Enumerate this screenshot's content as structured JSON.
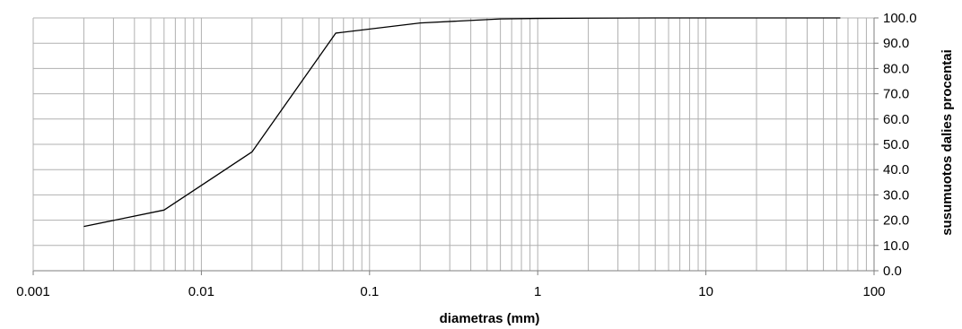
{
  "chart_data": {
    "type": "line",
    "xscale": "log",
    "xlim": [
      0.001,
      100
    ],
    "ylim": [
      0,
      100
    ],
    "xlabel": "diametras (mm)",
    "ylabel": "susumuotos dalies procentai",
    "x_ticks": [
      "0.001",
      "0.01",
      "0.1",
      "1",
      "10",
      "100"
    ],
    "y_ticks": [
      "0.0",
      "10.0",
      "20.0",
      "30.0",
      "40.0",
      "50.0",
      "60.0",
      "70.0",
      "80.0",
      "90.0",
      "100.0"
    ],
    "y_axis_side": "right",
    "grid": true,
    "series": [
      {
        "color": "#000000",
        "x": [
          0.002,
          0.006,
          0.02,
          0.063,
          0.2,
          0.6,
          1,
          2,
          5,
          10,
          20,
          63
        ],
        "y": [
          17.5,
          24,
          47,
          94,
          98,
          99.6,
          99.8,
          99.9,
          100,
          100,
          100,
          100
        ]
      }
    ]
  }
}
